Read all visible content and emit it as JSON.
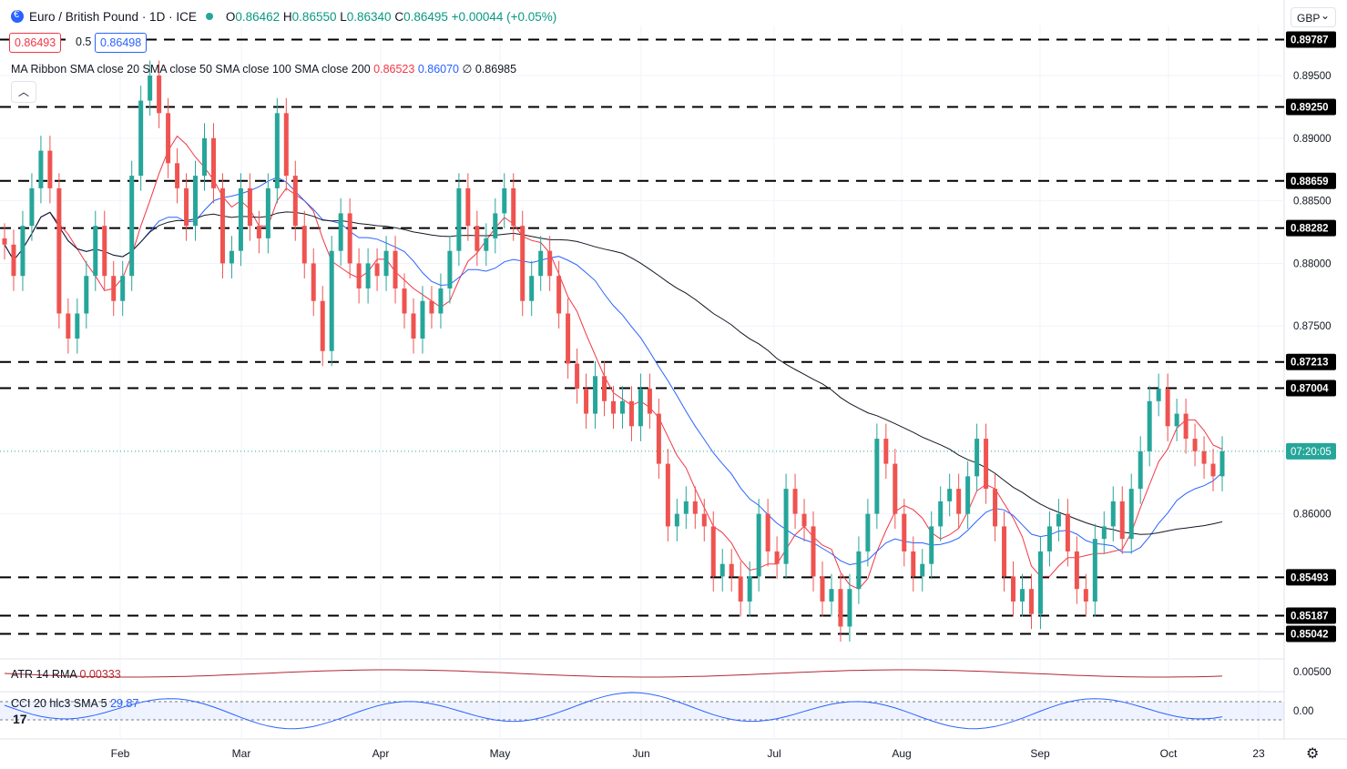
{
  "header": {
    "symbol": "Euro / British Pound · 1D · ICE",
    "open": "0.86462",
    "high": "0.86550",
    "low": "0.86340",
    "close": "0.86495",
    "change": "+0.00044 (+0.05%)",
    "sell": "0.86493",
    "spread": "0.5",
    "buy": "0.86498",
    "currency": "GBP"
  },
  "indicators": {
    "ma_label": "MA Ribbon SMA close 20 SMA close 50 SMA close 100 SMA close 200",
    "ma20": "0.86523",
    "ma50": "0.86070",
    "ma100": "∅",
    "ma200": "0.86985",
    "atr_label": "ATR 14 RMA",
    "atr_value": "0.00333",
    "cci_label": "CCI 20 hlc3 SMA 5",
    "cci_value": "29.87"
  },
  "colors": {
    "up": "#26a69a",
    "down": "#ef5350",
    "ma20": "#f23645",
    "ma50": "#2962ff",
    "ma200": "#131722",
    "atr": "#b22833",
    "cci": "#2962ff"
  },
  "chart_data": {
    "type": "candlestick",
    "price_ticks": [
      "0.89500",
      "0.89000",
      "0.88500",
      "0.88000",
      "0.87500",
      "0.86000"
    ],
    "levels": [
      "0.89787",
      "0.89250",
      "0.88659",
      "0.88282",
      "0.87213",
      "0.87004",
      "0.85493",
      "0.85187",
      "0.85042"
    ],
    "countdown": "07:20:05",
    "atr_ticks": [
      "0.00500"
    ],
    "cci_ticks": [
      "0.00"
    ],
    "x_labels": [
      "Feb",
      "Mar",
      "Apr",
      "May",
      "Jun",
      "Jul",
      "Aug",
      "Sep",
      "Oct",
      "23"
    ],
    "ylim": [
      0.849,
      0.899
    ],
    "candles": [
      [
        0.882,
        0.8815
      ],
      [
        0.8815,
        0.879
      ],
      [
        0.879,
        0.883
      ],
      [
        0.883,
        0.886
      ],
      [
        0.886,
        0.889
      ],
      [
        0.889,
        0.886
      ],
      [
        0.886,
        0.876
      ],
      [
        0.876,
        0.874
      ],
      [
        0.874,
        0.876
      ],
      [
        0.876,
        0.879
      ],
      [
        0.879,
        0.883
      ],
      [
        0.883,
        0.879
      ],
      [
        0.879,
        0.877
      ],
      [
        0.877,
        0.879
      ],
      [
        0.879,
        0.887
      ],
      [
        0.887,
        0.893
      ],
      [
        0.893,
        0.895
      ],
      [
        0.895,
        0.892
      ],
      [
        0.892,
        0.888
      ],
      [
        0.888,
        0.886
      ],
      [
        0.886,
        0.883
      ],
      [
        0.883,
        0.887
      ],
      [
        0.887,
        0.89
      ],
      [
        0.89,
        0.886
      ],
      [
        0.886,
        0.88
      ],
      [
        0.88,
        0.881
      ],
      [
        0.881,
        0.886
      ],
      [
        0.886,
        0.883
      ],
      [
        0.883,
        0.882
      ],
      [
        0.882,
        0.886
      ],
      [
        0.886,
        0.892
      ],
      [
        0.892,
        0.887
      ],
      [
        0.887,
        0.883
      ],
      [
        0.883,
        0.88
      ],
      [
        0.88,
        0.877
      ],
      [
        0.877,
        0.873
      ],
      [
        0.873,
        0.881
      ],
      [
        0.881,
        0.884
      ],
      [
        0.884,
        0.88
      ],
      [
        0.88,
        0.878
      ],
      [
        0.878,
        0.88
      ],
      [
        0.88,
        0.879
      ],
      [
        0.879,
        0.881
      ],
      [
        0.881,
        0.878
      ],
      [
        0.878,
        0.876
      ],
      [
        0.876,
        0.874
      ],
      [
        0.874,
        0.877
      ],
      [
        0.877,
        0.876
      ],
      [
        0.876,
        0.878
      ],
      [
        0.878,
        0.881
      ],
      [
        0.881,
        0.886
      ],
      [
        0.886,
        0.883
      ],
      [
        0.883,
        0.881
      ],
      [
        0.881,
        0.882
      ],
      [
        0.882,
        0.884
      ],
      [
        0.884,
        0.886
      ],
      [
        0.886,
        0.883
      ],
      [
        0.883,
        0.877
      ],
      [
        0.877,
        0.879
      ],
      [
        0.879,
        0.881
      ],
      [
        0.881,
        0.879
      ],
      [
        0.879,
        0.876
      ],
      [
        0.876,
        0.872
      ],
      [
        0.872,
        0.87
      ],
      [
        0.87,
        0.868
      ],
      [
        0.868,
        0.871
      ],
      [
        0.871,
        0.869
      ],
      [
        0.869,
        0.868
      ],
      [
        0.868,
        0.869
      ],
      [
        0.869,
        0.867
      ],
      [
        0.867,
        0.87
      ],
      [
        0.87,
        0.868
      ],
      [
        0.868,
        0.864
      ],
      [
        0.864,
        0.859
      ],
      [
        0.859,
        0.86
      ],
      [
        0.86,
        0.861
      ],
      [
        0.861,
        0.86
      ],
      [
        0.86,
        0.859
      ],
      [
        0.859,
        0.855
      ],
      [
        0.855,
        0.856
      ],
      [
        0.856,
        0.855
      ],
      [
        0.855,
        0.853
      ],
      [
        0.853,
        0.855
      ],
      [
        0.855,
        0.86
      ],
      [
        0.86,
        0.857
      ],
      [
        0.857,
        0.856
      ],
      [
        0.856,
        0.862
      ],
      [
        0.862,
        0.86
      ],
      [
        0.86,
        0.859
      ],
      [
        0.859,
        0.855
      ],
      [
        0.855,
        0.853
      ],
      [
        0.853,
        0.854
      ],
      [
        0.854,
        0.851
      ],
      [
        0.851,
        0.854
      ],
      [
        0.854,
        0.857
      ],
      [
        0.857,
        0.86
      ],
      [
        0.86,
        0.866
      ],
      [
        0.866,
        0.864
      ],
      [
        0.864,
        0.86
      ],
      [
        0.86,
        0.857
      ],
      [
        0.857,
        0.855
      ],
      [
        0.855,
        0.856
      ],
      [
        0.856,
        0.859
      ],
      [
        0.859,
        0.861
      ],
      [
        0.861,
        0.862
      ],
      [
        0.862,
        0.86
      ],
      [
        0.86,
        0.863
      ],
      [
        0.863,
        0.866
      ],
      [
        0.866,
        0.862
      ],
      [
        0.862,
        0.859
      ],
      [
        0.859,
        0.855
      ],
      [
        0.855,
        0.853
      ],
      [
        0.853,
        0.854
      ],
      [
        0.854,
        0.852
      ],
      [
        0.852,
        0.857
      ],
      [
        0.857,
        0.859
      ],
      [
        0.859,
        0.86
      ],
      [
        0.86,
        0.857
      ],
      [
        0.857,
        0.854
      ],
      [
        0.854,
        0.853
      ],
      [
        0.853,
        0.858
      ],
      [
        0.858,
        0.859
      ],
      [
        0.859,
        0.861
      ],
      [
        0.861,
        0.858
      ],
      [
        0.858,
        0.862
      ],
      [
        0.862,
        0.865
      ],
      [
        0.865,
        0.869
      ],
      [
        0.869,
        0.87
      ],
      [
        0.87,
        0.867
      ],
      [
        0.867,
        0.868
      ],
      [
        0.868,
        0.866
      ],
      [
        0.866,
        0.865
      ],
      [
        0.865,
        0.864
      ],
      [
        0.864,
        0.863
      ],
      [
        0.863,
        0.865
      ]
    ]
  }
}
